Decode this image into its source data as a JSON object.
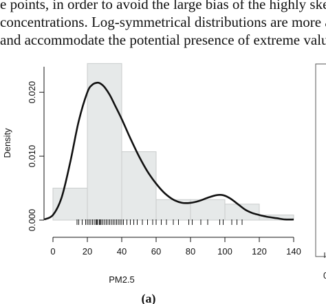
{
  "text": {
    "line1": "e points, in order to avoid the large bias of the highly skewed",
    "line2": "concentrations. Log-symmetrical distributions are more appropriate",
    "line3": "and accommodate the potential presence of extreme values."
  },
  "caption": "(a)",
  "chart_data": {
    "type": "histogram",
    "xlabel": "PM2.5",
    "ylabel": "Density",
    "xlim": [
      0,
      140
    ],
    "ylim": [
      0,
      0.024
    ],
    "x_ticks": [
      0,
      20,
      40,
      60,
      80,
      100,
      120,
      140
    ],
    "y_ticks": [
      0.0,
      0.01,
      0.02
    ],
    "y_tick_labels": [
      "0.000",
      "0.010",
      "0.020"
    ],
    "bins": [
      {
        "from": 0,
        "to": 20,
        "density": 0.005
      },
      {
        "from": 20,
        "to": 40,
        "density": 0.0245
      },
      {
        "from": 40,
        "to": 60,
        "density": 0.0107
      },
      {
        "from": 60,
        "to": 80,
        "density": 0.0032
      },
      {
        "from": 80,
        "to": 100,
        "density": 0.0032
      },
      {
        "from": 100,
        "to": 120,
        "density": 0.0025
      },
      {
        "from": 120,
        "to": 140,
        "density": 0.0008
      }
    ],
    "density_curve": {
      "x": [
        -5,
        0,
        5,
        10,
        15,
        20,
        23,
        26,
        28,
        30,
        33,
        36,
        40,
        45,
        50,
        55,
        60,
        65,
        70,
        75,
        80,
        85,
        90,
        95,
        99,
        103,
        108,
        112,
        116,
        120,
        125,
        130,
        135,
        140
      ],
      "y": [
        0.0001,
        0.0008,
        0.0035,
        0.009,
        0.0155,
        0.02,
        0.0212,
        0.0215,
        0.0213,
        0.0208,
        0.0196,
        0.018,
        0.0158,
        0.0128,
        0.01,
        0.0076,
        0.0057,
        0.0042,
        0.0032,
        0.0027,
        0.0027,
        0.003,
        0.0035,
        0.0039,
        0.0039,
        0.0034,
        0.0024,
        0.0016,
        0.0011,
        0.0008,
        0.0005,
        0.0003,
        0.0001,
        0.0001
      ]
    },
    "rug": [
      14,
      15,
      17,
      19,
      20,
      21,
      22,
      23,
      24,
      25,
      25.5,
      26,
      27,
      27.5,
      28,
      29,
      30,
      31,
      32,
      33,
      34,
      35,
      36,
      37,
      38,
      39,
      40,
      41,
      43,
      45,
      47,
      49,
      52,
      55,
      58,
      60,
      63,
      66,
      70,
      73,
      79,
      81,
      86,
      90,
      97,
      99,
      104,
      107,
      110
    ],
    "colors": {
      "bars_fill": "#e6e9e9",
      "bars_stroke": "#c9cccc",
      "curve": "#111111",
      "axis": "#111111"
    }
  }
}
